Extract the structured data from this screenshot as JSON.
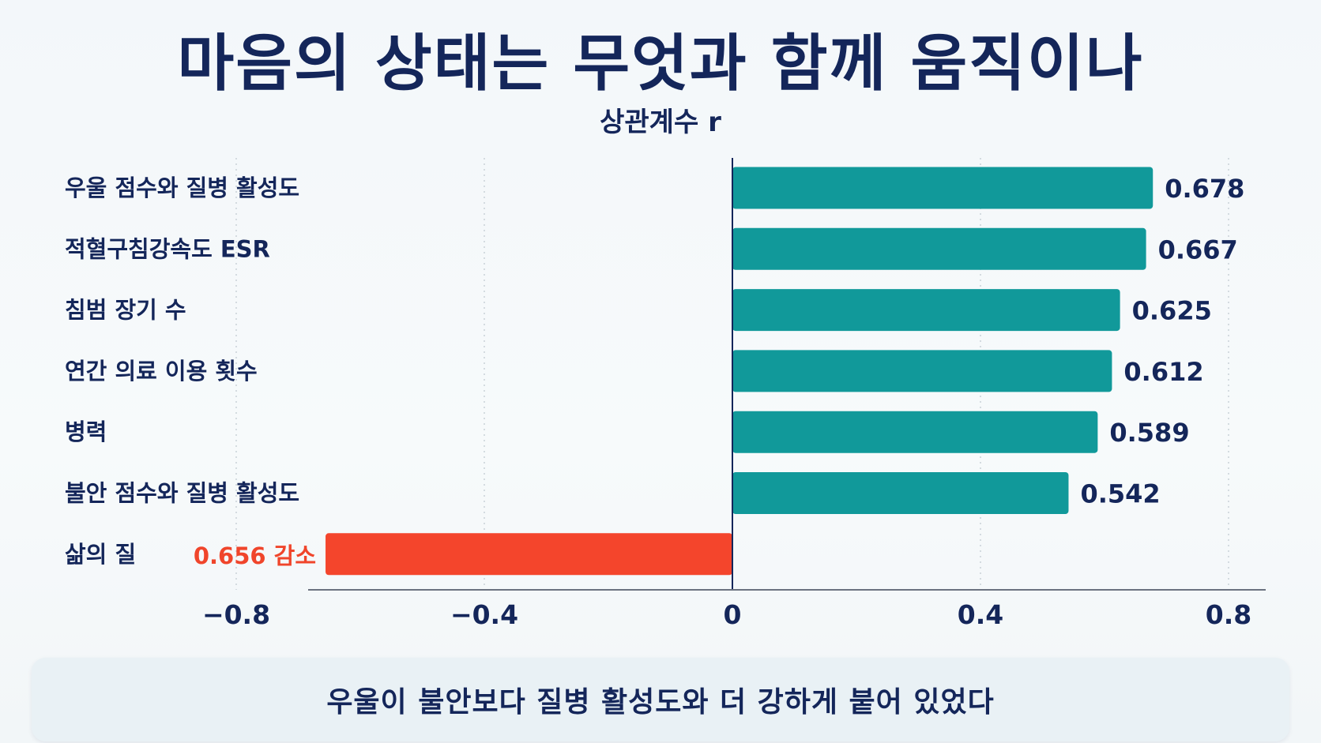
{
  "header": {
    "title": "마음의 상태는 무엇과 함께 움직이나",
    "subtitle": "상관계수 r"
  },
  "chart_data": {
    "type": "bar",
    "orientation": "horizontal",
    "title": "마음의 상태는 무엇과 함께 움직이나",
    "subtitle": "상관계수 r",
    "categories": [
      "우울 점수와 질병 활성도",
      "적혈구침강속도 ESR",
      "침범 장기 수",
      "연간 의료 이용 횟수",
      "병력",
      "불안 점수와 질병 활성도",
      "삶의 질"
    ],
    "values": [
      0.678,
      0.667,
      0.625,
      0.612,
      0.589,
      0.542,
      -0.656
    ],
    "data_labels": [
      "0.678",
      "0.667",
      "0.625",
      "0.612",
      "0.589",
      "0.542",
      "0.656 감소"
    ],
    "xlim": [
      -0.85,
      0.85
    ],
    "ticks": [
      -0.8,
      -0.4,
      0,
      0.4,
      0.8
    ],
    "tick_labels": [
      "−0.8",
      "−0.4",
      "0",
      "0.4",
      "0.8"
    ],
    "grid": "vertical dotted",
    "colors": {
      "positive": "#11999a",
      "negative": "#f4452c",
      "text": "#14265a",
      "negative_label": "#f0452b"
    }
  },
  "callout": {
    "text": "우울이 불안보다 질병 활성도와 더 강하게 붙어 있었다"
  }
}
